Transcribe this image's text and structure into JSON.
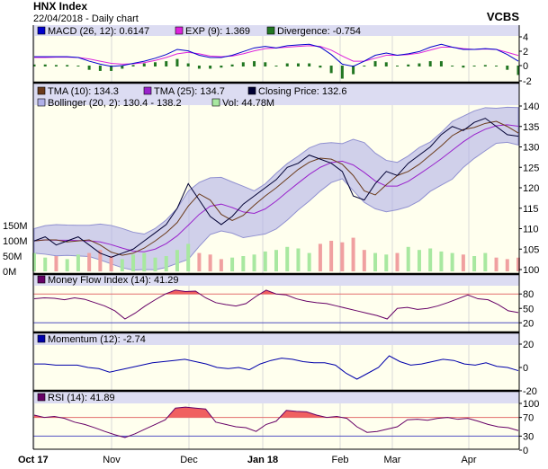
{
  "header": {
    "title": "HNX Index",
    "subtitle": "22/04/2018 - Daily chart",
    "brand": "VCBS"
  },
  "chart_data": {
    "type": "line",
    "x_ticks": [
      "Oct 17",
      "Nov",
      "Dec",
      "Jan 18",
      "Feb",
      "Mar",
      "Apr"
    ],
    "macd": {
      "legend": [
        "MACD (26, 12): 0.6147",
        "EXP (9): 1.369",
        "Divergence: -0.754"
      ],
      "colors": [
        "#0000cc",
        "#dd22dd",
        "#227722"
      ],
      "yticks": [
        "4",
        "2",
        "0",
        "-2"
      ],
      "macd": [
        1.2,
        1.2,
        1.2,
        1.2,
        1.1,
        0.6,
        0.2,
        -0.1,
        0,
        0.3,
        0.6,
        1,
        1.5,
        2.2,
        2.0,
        1.4,
        1.1,
        1.1,
        1.4,
        1.9,
        2.4,
        2.6,
        2.4,
        2.7,
        2.8,
        2.9,
        2.5,
        1.5,
        0.2,
        -0.1,
        0.6,
        1.4,
        1.7,
        1.4,
        1.6,
        1.9,
        2.5,
        2.9,
        2.5,
        2.2,
        2.2,
        2.3,
        2.2,
        1.5,
        0.6
      ],
      "signal": [
        1.1,
        1.1,
        1.15,
        1.15,
        1.1,
        0.9,
        0.6,
        0.3,
        0.2,
        0.25,
        0.4,
        0.7,
        1.1,
        1.6,
        1.8,
        1.6,
        1.3,
        1.2,
        1.3,
        1.6,
        2.0,
        2.3,
        2.4,
        2.5,
        2.6,
        2.7,
        2.6,
        2.1,
        1.3,
        0.6,
        0.6,
        1.0,
        1.4,
        1.4,
        1.5,
        1.7,
        2.1,
        2.5,
        2.5,
        2.3,
        2.2,
        2.25,
        2.2,
        1.8,
        1.369
      ]
    },
    "price": {
      "legend": [
        "TMA (10): 134.3",
        "TMA (25): 134.7",
        "Closing Price: 132.6",
        "Bollinger (20, 2): 130.4 - 138.2",
        "Vol: 44.78M"
      ],
      "colors": {
        "tma10": "#6b3b1b",
        "tma25": "#9922cc",
        "close": "#000033",
        "band": "#b0b0e8",
        "vol_up": "#a8e8a0",
        "vol_down": "#f0a0a0"
      },
      "yticks": [
        "140",
        "135",
        "130",
        "125",
        "120",
        "115",
        "110",
        "105",
        "100"
      ],
      "vol_ticks": [
        "150M",
        "100M",
        "50M",
        "0M"
      ],
      "close": [
        107,
        108,
        106,
        107,
        108,
        106,
        104,
        103,
        104,
        105,
        107,
        109,
        111,
        115,
        121,
        117,
        113,
        111,
        113,
        116,
        118,
        120,
        122,
        125,
        126,
        128,
        127,
        126,
        124,
        118,
        117,
        121,
        124,
        123,
        126,
        128,
        130,
        133,
        135,
        134,
        136,
        137,
        135,
        133,
        132.6
      ],
      "volume": [
        60,
        45,
        50,
        40,
        55,
        60,
        70,
        50,
        40,
        55,
        60,
        45,
        50,
        70,
        90,
        60,
        55,
        40,
        45,
        50,
        55,
        65,
        70,
        80,
        75,
        60,
        90,
        100,
        95,
        110,
        70,
        60,
        55,
        60,
        80,
        70,
        75,
        65,
        60,
        55,
        50,
        60,
        45,
        40,
        44.78
      ]
    },
    "mfi": {
      "legend": "Money Flow Index (14): 41.29",
      "color": "#660066",
      "yticks": [
        "80",
        "50",
        "20"
      ],
      "values": [
        70,
        72,
        71,
        68,
        72,
        69,
        62,
        55,
        45,
        28,
        40,
        55,
        68,
        80,
        88,
        85,
        86,
        72,
        62,
        58,
        55,
        60,
        75,
        88,
        80,
        78,
        70,
        65,
        62,
        60,
        55,
        50,
        45,
        40,
        35,
        28,
        50,
        52,
        48,
        50,
        55,
        62,
        70,
        78,
        70,
        68,
        58,
        45,
        41.29
      ]
    },
    "momentum": {
      "legend": "Momentum (12): -2.74",
      "color": "#0000aa",
      "yticks": [
        "20",
        "0",
        "-20"
      ],
      "values": [
        3,
        3,
        2,
        2,
        2,
        0,
        -1,
        -4,
        -2,
        0,
        2,
        4,
        5,
        6,
        7,
        5,
        3,
        0,
        -1,
        0,
        -2,
        3,
        6,
        8,
        7,
        5,
        4,
        4,
        2,
        -5,
        -10,
        -5,
        0,
        10,
        5,
        2,
        3,
        5,
        7,
        6,
        3,
        2,
        4,
        1,
        0,
        -2.74
      ]
    },
    "rsi": {
      "legend": "RSI (14): 41.89",
      "color": "#660066",
      "yticks": [
        "100",
        "70",
        "30",
        "0"
      ],
      "values": [
        75,
        70,
        72,
        68,
        60,
        55,
        48,
        40,
        33,
        27,
        35,
        45,
        55,
        65,
        90,
        92,
        90,
        88,
        60,
        55,
        50,
        48,
        40,
        55,
        62,
        85,
        83,
        82,
        75,
        70,
        72,
        68,
        50,
        38,
        40,
        45,
        50,
        65,
        66,
        64,
        68,
        70,
        66,
        68,
        62,
        55,
        50,
        48,
        41.89
      ]
    }
  }
}
